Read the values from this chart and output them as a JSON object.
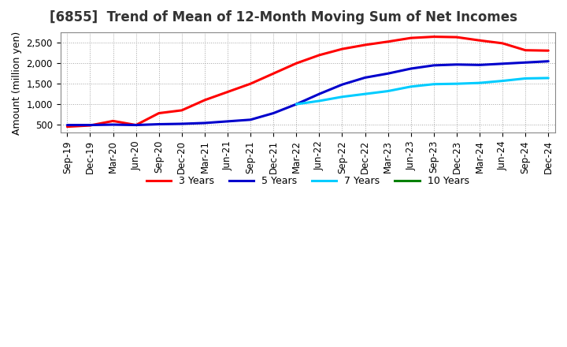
{
  "title": "[6855]  Trend of Mean of 12-Month Moving Sum of Net Incomes",
  "ylabel": "Amount (million yen)",
  "x_labels": [
    "Sep-19",
    "Dec-19",
    "Mar-20",
    "Jun-20",
    "Sep-20",
    "Dec-20",
    "Mar-21",
    "Jun-21",
    "Sep-21",
    "Dec-21",
    "Mar-22",
    "Jun-22",
    "Sep-22",
    "Dec-22",
    "Mar-23",
    "Jun-23",
    "Sep-23",
    "Dec-23",
    "Mar-24",
    "Jun-24",
    "Sep-24",
    "Dec-24"
  ],
  "series": {
    "3 Years": {
      "color": "#ff0000",
      "data_x": [
        0,
        1,
        2,
        3,
        4,
        5,
        6,
        7,
        8,
        9,
        10,
        11,
        12,
        13,
        14,
        15,
        16,
        17,
        18,
        19,
        20,
        21
      ],
      "data_y": [
        450,
        480,
        590,
        490,
        780,
        850,
        1100,
        1300,
        1500,
        1750,
        2000,
        2200,
        2350,
        2450,
        2530,
        2620,
        2650,
        2640,
        2560,
        2490,
        2320,
        2310
      ]
    },
    "5 Years": {
      "color": "#0000cc",
      "data_x": [
        0,
        1,
        2,
        3,
        4,
        5,
        6,
        7,
        8,
        9,
        10,
        11,
        12,
        13,
        14,
        15,
        16,
        17,
        18,
        19,
        20,
        21
      ],
      "data_y": [
        490,
        490,
        500,
        490,
        510,
        520,
        540,
        580,
        620,
        780,
        1000,
        1250,
        1480,
        1650,
        1750,
        1870,
        1950,
        1970,
        1960,
        1990,
        2020,
        2050
      ]
    },
    "7 Years": {
      "color": "#00ccff",
      "data_x": [
        10,
        11,
        12,
        13,
        14,
        15,
        16,
        17,
        18,
        19,
        20,
        21
      ],
      "data_y": [
        1000,
        1080,
        1180,
        1250,
        1320,
        1430,
        1490,
        1500,
        1520,
        1570,
        1630,
        1640
      ]
    },
    "10 Years": {
      "color": "#008000",
      "data_x": [],
      "data_y": []
    }
  },
  "ylim": [
    300,
    2750
  ],
  "yticks": [
    500,
    1000,
    1500,
    2000,
    2500
  ],
  "background_color": "#ffffff",
  "grid_color": "#999999",
  "title_fontsize": 12,
  "axis_fontsize": 9,
  "tick_fontsize": 8.5,
  "legend_fontsize": 9
}
